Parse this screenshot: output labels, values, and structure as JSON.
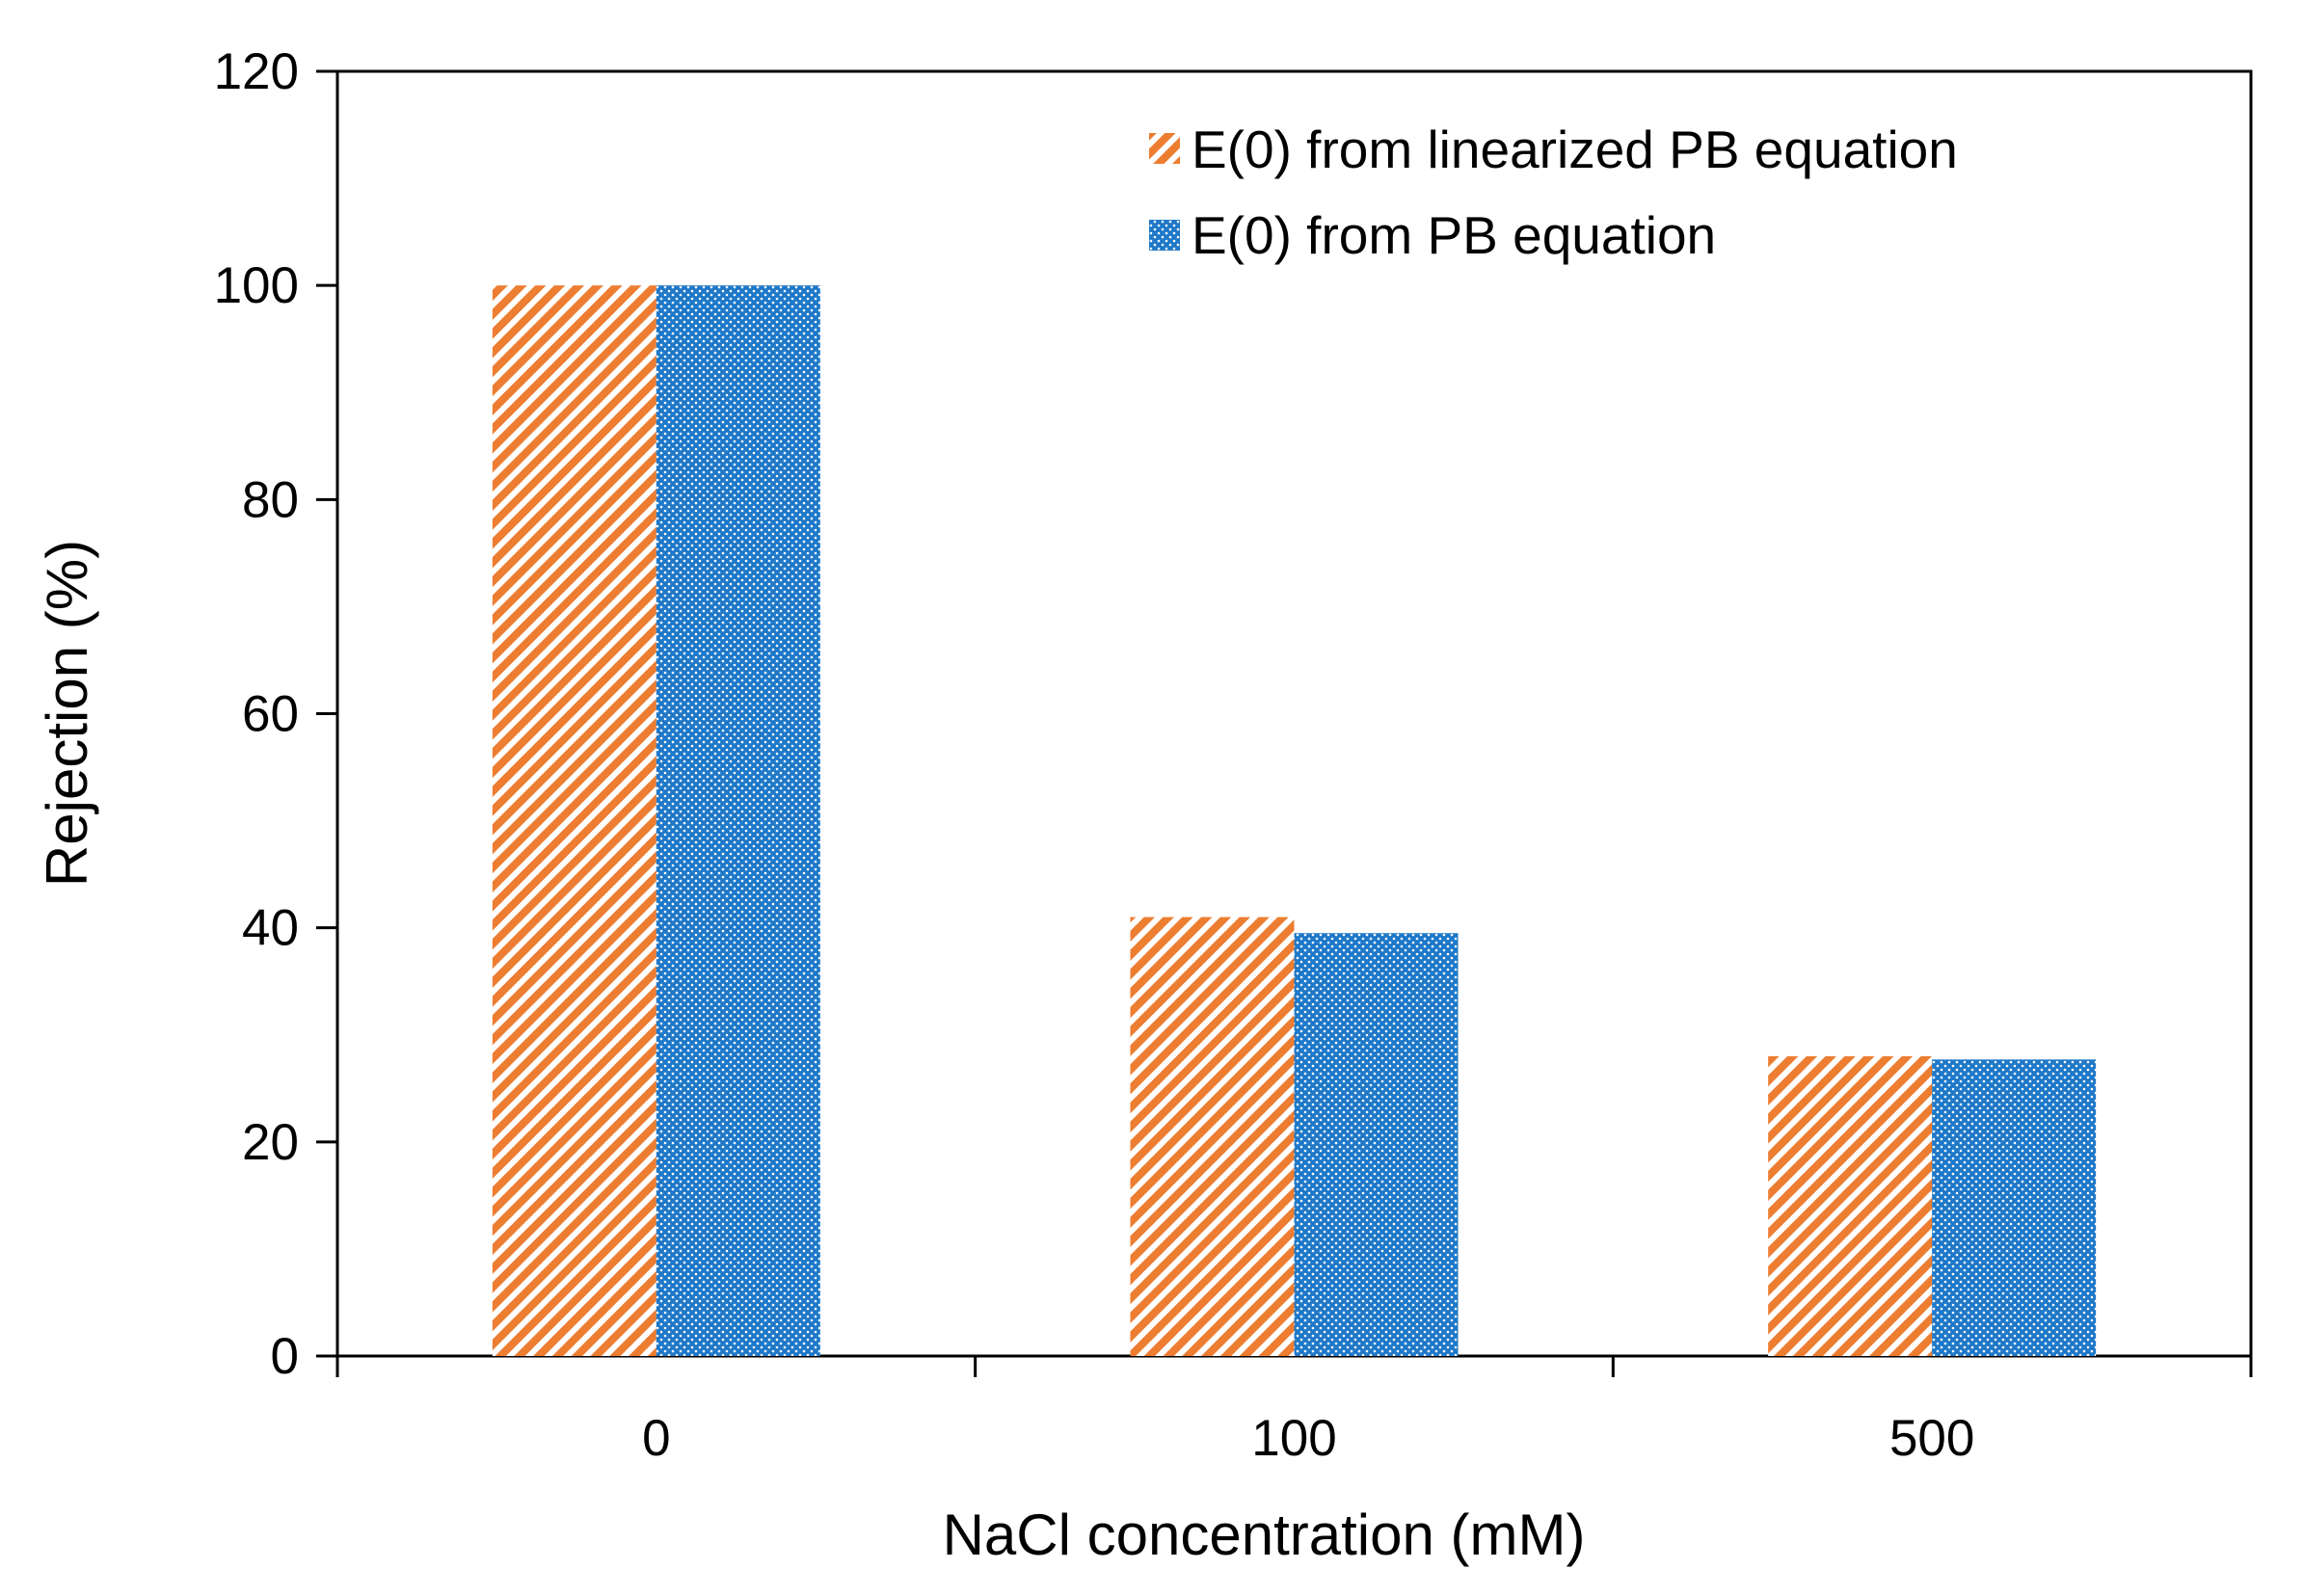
{
  "chart_data": {
    "type": "bar",
    "title": "",
    "xlabel": "NaCl concentration (mM)",
    "ylabel": "Rejection (%)",
    "categories": [
      "0",
      "100",
      "500"
    ],
    "series": [
      {
        "name": "E(0) from linearized PB equation",
        "color": "#ED7D31",
        "pattern": "diagonal-hatch",
        "values": [
          100,
          41,
          28
        ]
      },
      {
        "name": "E(0) from PB equation",
        "color": "#1F78C8",
        "pattern": "dotted",
        "values": [
          100,
          39.5,
          27.7
        ]
      }
    ],
    "ylim": [
      0,
      120
    ],
    "yticks": [
      "0",
      "20",
      "40",
      "60",
      "80",
      "100",
      "120"
    ],
    "legend_position": "top-right",
    "grid": false
  }
}
